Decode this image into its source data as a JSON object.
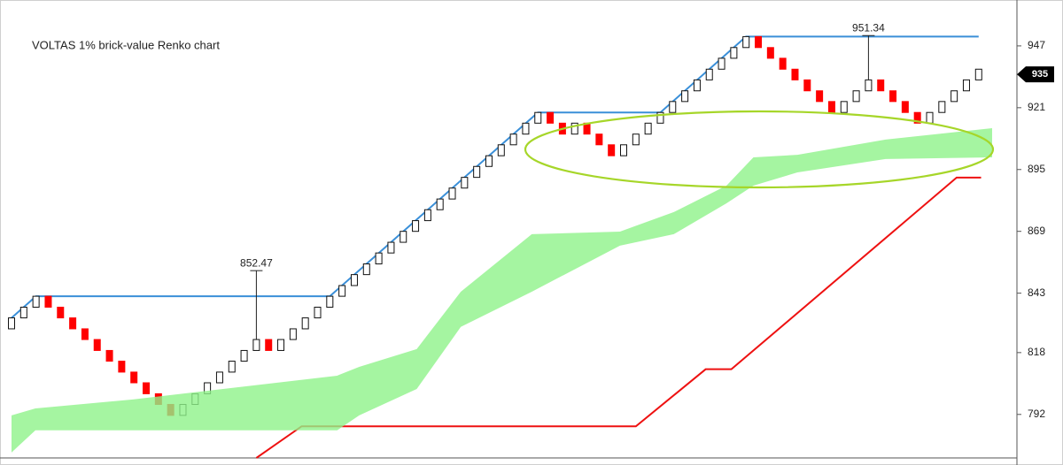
{
  "chart_data": {
    "type": "renko",
    "title": "VOLTAS 1% brick-value Renko chart",
    "up_color": "#ffffff",
    "down_color": "#ff0000",
    "open": [
      828.0,
      832.6,
      837.1,
      841.7,
      837.1,
      832.6,
      828.0,
      823.5,
      818.9,
      814.4,
      809.8,
      805.3,
      800.7,
      796.2,
      791.6,
      796.2,
      800.7,
      805.3,
      809.8,
      814.4,
      818.9,
      823.5,
      818.9,
      823.5,
      828.0,
      832.6,
      837.1,
      841.7,
      846.2,
      850.8,
      855.3,
      859.9,
      864.4,
      869.0,
      873.5,
      878.1,
      882.6,
      887.2,
      891.7,
      896.3,
      900.8,
      905.4,
      909.9,
      914.5,
      919.0,
      914.5,
      909.9,
      914.5,
      909.9,
      905.4,
      900.8,
      905.4,
      909.9,
      914.5,
      919.0,
      923.6,
      928.1,
      932.7,
      937.2,
      941.8,
      946.3,
      950.9,
      946.3,
      941.8,
      937.2,
      932.7,
      928.1,
      923.6,
      919.0,
      923.6,
      928.1,
      932.7,
      928.1,
      923.6,
      919.0,
      914.5,
      919.0,
      923.6,
      928.1,
      932.7
    ],
    "close": [
      832.6,
      837.1,
      841.7,
      837.1,
      832.6,
      828.0,
      823.5,
      818.9,
      814.4,
      809.8,
      805.3,
      800.7,
      796.2,
      791.6,
      796.2,
      800.7,
      805.3,
      809.8,
      814.4,
      818.9,
      823.5,
      818.9,
      823.5,
      828.0,
      832.6,
      837.1,
      841.7,
      846.2,
      850.8,
      855.3,
      859.9,
      864.4,
      869.0,
      873.5,
      878.1,
      882.6,
      887.2,
      891.7,
      896.3,
      900.8,
      905.4,
      909.9,
      914.5,
      919.0,
      914.5,
      909.9,
      914.5,
      909.9,
      905.4,
      900.8,
      905.4,
      909.9,
      914.5,
      919.0,
      923.6,
      928.1,
      932.7,
      937.2,
      941.8,
      946.3,
      950.9,
      946.3,
      941.8,
      937.2,
      932.7,
      928.1,
      923.6,
      919.0,
      923.6,
      928.1,
      932.7,
      928.1,
      923.6,
      919.0,
      914.5,
      919.0,
      923.6,
      928.1,
      932.7,
      937.2
    ],
    "resistance": {
      "color": "#3a8fd8",
      "x": [
        0,
        2,
        26,
        43,
        53,
        60,
        79
      ],
      "values": [
        832.6,
        841.7,
        841.7,
        919.0,
        919.0,
        950.9,
        950.9
      ]
    },
    "stop": {
      "color": "#ee1111",
      "x": [
        20,
        23.7,
        51,
        56.7,
        58.8,
        77.2,
        79.2
      ],
      "values": [
        773.7,
        787.0,
        787.0,
        811.0,
        811.0,
        891.6,
        891.6
      ]
    },
    "cloud": {
      "color": "#8ef28a",
      "x": [
        0,
        1.95,
        9.9,
        26.6,
        28.4,
        33.1,
        36.7,
        42.5,
        49.7,
        54.1,
        58.4,
        60.6,
        64.2,
        71.4,
        80.1
      ],
      "upper": [
        791.6,
        794.5,
        798.3,
        808.3,
        812.0,
        819.5,
        843.6,
        867.8,
        868.9,
        877.1,
        888.2,
        900.1,
        901.2,
        907.6,
        912.4
      ],
      "lower": [
        776.0,
        785.3,
        785.3,
        785.3,
        791.6,
        802.7,
        828.8,
        843.6,
        863.0,
        867.8,
        880.8,
        888.2,
        893.8,
        899.4,
        900.1
      ]
    },
    "annotations": [
      {
        "x": 20,
        "from": 823.5,
        "value": 852.47
      },
      {
        "x": 70,
        "from": 932.7,
        "value": 951.34
      }
    ],
    "last_price": 935,
    "ylim": [
      773.7,
      966.3
    ],
    "yticks": [
      792,
      818,
      843,
      869,
      895,
      921,
      947
    ]
  }
}
